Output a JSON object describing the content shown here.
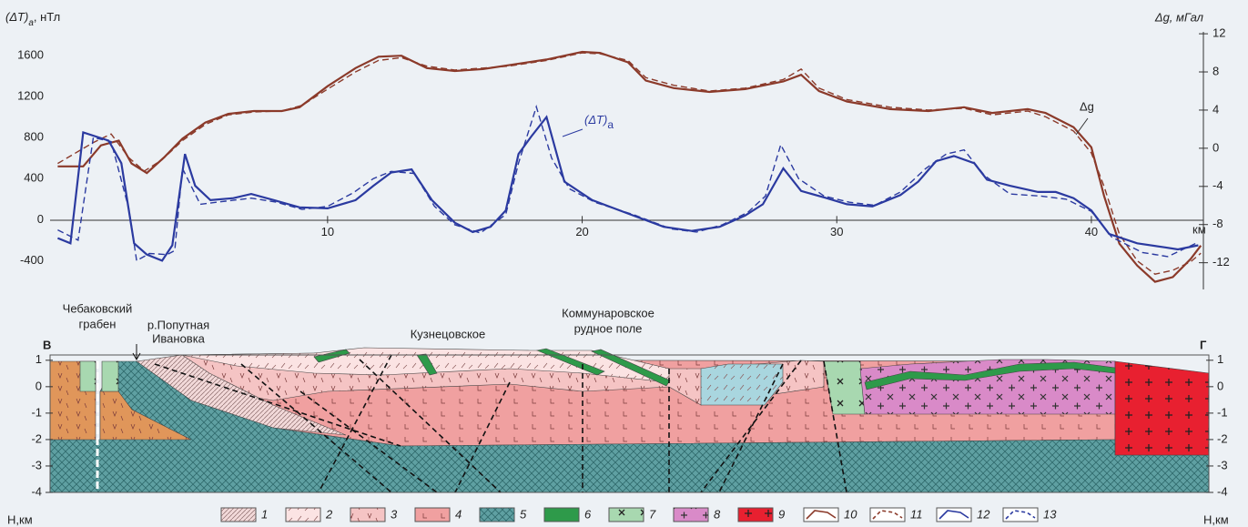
{
  "chart_data": {
    "type": "line",
    "y_label": {
      "text": "(ΔT)",
      "sub": "a",
      "unit": ", нТл"
    },
    "y2_label": "Δg, мГал",
    "x_unit": "км",
    "xlim": [
      -0.9,
      44.4
    ],
    "xticks": [
      10,
      20,
      30,
      40
    ],
    "ylim": [
      -680,
      1830
    ],
    "yticks": [
      -400,
      0,
      400,
      800,
      1200,
      1600
    ],
    "y2lim": [
      -14.8,
      12.2
    ],
    "y2ticks": [
      -12,
      -8,
      -4,
      0,
      4,
      8,
      12
    ],
    "annotations": [
      {
        "text": "(ΔT)",
        "sub": "a"
      },
      {
        "text": "Δg"
      }
    ],
    "series": [
      {
        "name": "10",
        "color": "#8b3a2a",
        "dash": false,
        "axis": "y2",
        "x": [
          -0.6,
          0.4,
          1.1,
          1.8,
          2.3,
          2.9,
          3.6,
          4.3,
          5.2,
          6.1,
          7.1,
          8.2,
          8.9,
          10,
          11.1,
          12,
          12.9,
          13.9,
          15,
          16.1,
          17.1,
          18.6,
          20,
          20.7,
          21.8,
          22.5,
          23.6,
          25,
          26.4,
          27.9,
          28.6,
          29.3,
          30.4,
          32.1,
          33.6,
          35,
          36.1,
          37.5,
          38.2,
          39.3,
          40,
          40.5,
          41.1,
          41.8,
          42.5,
          43.2,
          43.9,
          44.3
        ],
        "values": [
          -1.9,
          -1.9,
          0.3,
          0.8,
          -1.6,
          -2.6,
          -0.9,
          1.0,
          2.7,
          3.6,
          3.9,
          3.9,
          4.3,
          6.5,
          8.4,
          9.6,
          9.7,
          8.4,
          8.1,
          8.3,
          8.7,
          9.3,
          10.1,
          10,
          9.0,
          7.1,
          6.3,
          5.9,
          6.2,
          7.0,
          7.7,
          6.0,
          4.9,
          4.1,
          3.9,
          4.3,
          3.7,
          4.1,
          3.7,
          2.2,
          0.1,
          -5.0,
          -10.0,
          -12.3,
          -14.0,
          -13.5,
          -11.6,
          -10.2
        ]
      },
      {
        "name": "11",
        "color": "#8b3a2a",
        "dash": true,
        "axis": "y2",
        "x": [
          -0.6,
          0.8,
          1.5,
          2.2,
          2.8,
          3.5,
          4.3,
          5.2,
          6.1,
          7.1,
          8.2,
          9.0,
          10.0,
          11.1,
          12.0,
          12.9,
          13.9,
          15.0,
          16.1,
          17.1,
          18.6,
          20.0,
          20.7,
          21.8,
          22.5,
          23.6,
          25.0,
          26.4,
          27.9,
          28.6,
          29.3,
          30.4,
          32.1,
          33.6,
          35.0,
          36.1,
          37.5,
          38.2,
          39.3,
          40.0,
          40.5,
          41.1,
          41.8,
          42.5,
          43.2,
          43.9,
          44.3
        ],
        "values": [
          -1.6,
          0.6,
          1.5,
          -1.0,
          -2.4,
          -1.2,
          0.8,
          2.5,
          3.5,
          3.8,
          3.9,
          4.5,
          6.2,
          8.0,
          9.2,
          9.5,
          8.6,
          8.2,
          8.4,
          8.6,
          9.2,
          10.0,
          9.9,
          9.2,
          7.4,
          6.6,
          6.0,
          6.3,
          7.2,
          8.3,
          6.3,
          5.1,
          4.3,
          4.0,
          4.2,
          3.5,
          3.9,
          3.3,
          1.8,
          -0.5,
          -4.0,
          -9.0,
          -11.8,
          -13.2,
          -12.8,
          -11.9,
          -11.0
        ]
      },
      {
        "name": "12",
        "color": "#2b3aa0",
        "dash": false,
        "axis": "y",
        "x": [
          -0.6,
          -0.1,
          0.4,
          1.4,
          1.9,
          2.4,
          2.9,
          3.5,
          3.9,
          4.4,
          4.8,
          5.4,
          6.3,
          7.0,
          7.9,
          8.9,
          10.0,
          11.1,
          11.8,
          12.5,
          13.3,
          14.1,
          15.0,
          15.7,
          16.4,
          17.0,
          17.5,
          18.0,
          18.6,
          19.3,
          20.4,
          21.8,
          23.2,
          24.3,
          25.4,
          26.4,
          27.1,
          27.9,
          28.6,
          29.6,
          30.4,
          31.4,
          32.5,
          33.2,
          33.9,
          34.6,
          35.4,
          35.9,
          36.8,
          37.9,
          38.6,
          39.3,
          40.0,
          40.7,
          41.8,
          42.9,
          43.4,
          44.2
        ],
        "values": [
          -180,
          -230,
          850,
          770,
          550,
          -230,
          -340,
          -400,
          -250,
          640,
          330,
          190,
          210,
          250,
          190,
          120,
          110,
          190,
          330,
          460,
          490,
          190,
          -30,
          -120,
          -70,
          90,
          640,
          810,
          1000,
          370,
          190,
          60,
          -70,
          -110,
          -70,
          40,
          150,
          500,
          280,
          210,
          150,
          130,
          240,
          370,
          570,
          620,
          550,
          390,
          330,
          270,
          270,
          210,
          90,
          -140,
          -230,
          -270,
          -290,
          -250
        ]
      },
      {
        "name": "13",
        "color": "#2b3aa0",
        "dash": true,
        "axis": "y",
        "x": [
          -0.6,
          0.2,
          0.8,
          1.5,
          2.2,
          2.5,
          3.0,
          3.7,
          4.0,
          4.3,
          5.0,
          6.0,
          7.0,
          8.0,
          9.0,
          10.0,
          11.0,
          11.8,
          12.5,
          13.4,
          14.2,
          15.0,
          16.0,
          17.0,
          17.5,
          18.2,
          18.8,
          19.5,
          20.5,
          22.0,
          23.5,
          24.5,
          25.5,
          26.5,
          27.2,
          27.8,
          28.5,
          29.5,
          30.5,
          31.5,
          32.5,
          33.5,
          34.3,
          35.0,
          35.8,
          36.8,
          38.0,
          39.0,
          40.0,
          40.8,
          42.0,
          43.0,
          44.2
        ],
        "values": [
          -100,
          -200,
          800,
          760,
          100,
          -400,
          -330,
          -340,
          -300,
          500,
          150,
          180,
          210,
          170,
          100,
          130,
          260,
          400,
          470,
          450,
          130,
          -50,
          -130,
          50,
          550,
          1100,
          600,
          300,
          170,
          50,
          -90,
          -120,
          -50,
          70,
          230,
          730,
          400,
          230,
          170,
          140,
          270,
          500,
          640,
          680,
          430,
          250,
          230,
          200,
          80,
          -170,
          -320,
          -360,
          -220
        ]
      }
    ]
  },
  "section": {
    "ylim": [
      1.2,
      -4
    ],
    "yticks": [
      1,
      0,
      -1,
      -2,
      -3,
      -4
    ],
    "y_label": "Н,км",
    "ends": [
      "В",
      "Г"
    ],
    "labels": [
      [
        "Чебаковский",
        "грабен"
      ],
      [
        "р.Попутная",
        "Ивановка"
      ],
      [
        "Кузнецовское"
      ],
      [
        "Коммунаровское",
        "рудное поле"
      ]
    ],
    "legend": [
      {
        "label": "1",
        "color": "#f2d9d9"
      },
      {
        "label": "2",
        "color": "#fbe3e3"
      },
      {
        "label": "3",
        "color": "#f5c4c4"
      },
      {
        "label": "4",
        "color": "#f0a0a0"
      },
      {
        "label": "5",
        "color": "#5fa0a2"
      },
      {
        "label": "6",
        "color": "#2e9a4a"
      },
      {
        "label": "7",
        "color": "#a8d8b0"
      },
      {
        "label": "8",
        "color": "#d98ac8"
      },
      {
        "label": "9",
        "color": "#e82030"
      }
    ]
  }
}
